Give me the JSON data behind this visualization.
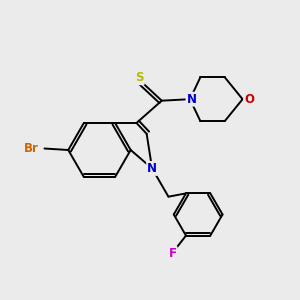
{
  "bg_color": "#ebebeb",
  "bond_color": "#000000",
  "atom_colors": {
    "Br": "#cc6600",
    "F": "#cc00cc",
    "N": "#0000cc",
    "O": "#cc0000",
    "S": "#b8b800"
  },
  "lw": 1.4,
  "fontsize": 8.5
}
